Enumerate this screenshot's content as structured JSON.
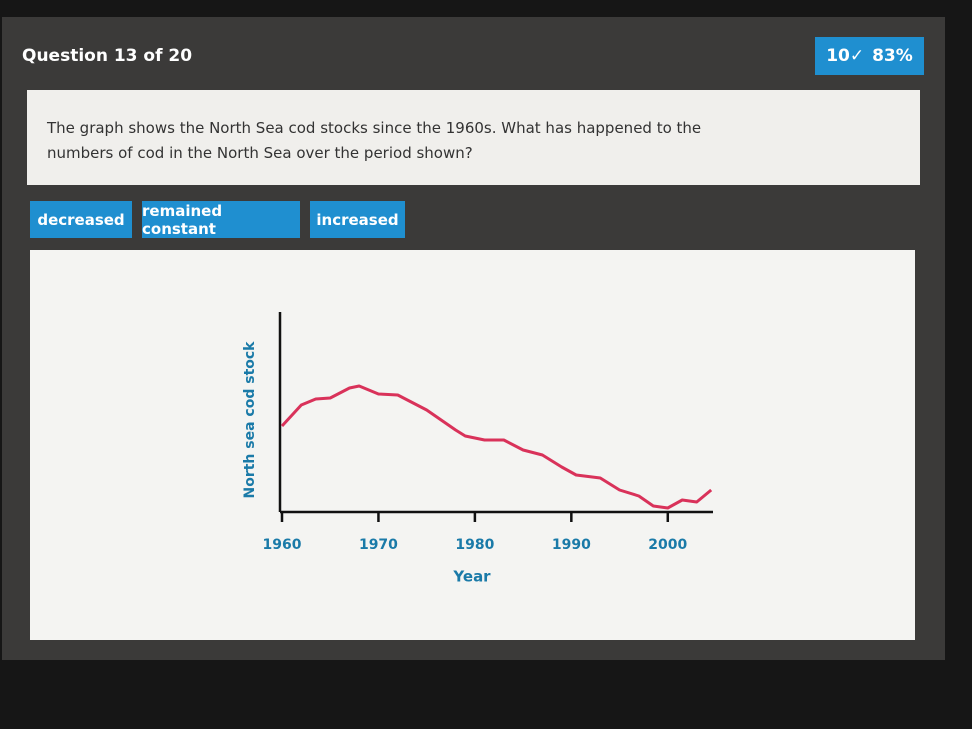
{
  "header": {
    "title": "Question 13 of 20",
    "score": "10✓",
    "percent": "83%"
  },
  "question": {
    "text": "The graph shows the North Sea cod stocks since the 1960s. What has happened to the numbers of cod in the North Sea over the period shown?"
  },
  "options": [
    "decreased",
    "remained constant",
    "increased"
  ],
  "chart_data": {
    "type": "line",
    "x_label": "Year",
    "y_label": "North sea cod stock",
    "x": [
      1960,
      1962,
      1963.5,
      1965,
      1967,
      1968,
      1970,
      1972,
      1975,
      1978,
      1979,
      1981,
      1983,
      1985,
      1987,
      1989,
      1990.5,
      1993,
      1995,
      1997,
      1998.5,
      2000,
      2001.5,
      2003,
      2004.5
    ],
    "values": [
      43,
      53.5,
      56.5,
      57,
      62,
      63,
      59,
      58.5,
      51,
      41,
      38,
      36,
      36,
      31,
      28.5,
      22.5,
      18.5,
      17,
      11,
      8,
      3,
      2,
      6,
      5,
      11
    ],
    "color": "#d9325a",
    "xlim": [
      1960,
      2005
    ],
    "xticks": [
      1960,
      1970,
      1980,
      1990,
      2000
    ],
    "ylim": [
      0,
      100
    ]
  }
}
